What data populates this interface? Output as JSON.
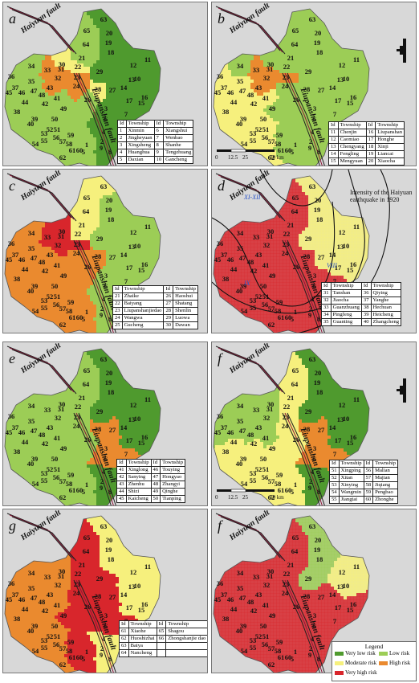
{
  "colors": {
    "very_low": "#4f9a2e",
    "low": "#9ccd56",
    "moderate": "#f6f07d",
    "high": "#ea8a2f",
    "very_high": "#d8262c"
  },
  "fault_labels": {
    "haiyuan": "Haiyuan fault",
    "liupanshan": "Liupanshan fault"
  },
  "panels": [
    {
      "label": "a",
      "north_arrow": false,
      "table": {
        "header": [
          "Id",
          "Township",
          "Id",
          "Township"
        ],
        "rows": [
          [
            "1",
            "Xinmin",
            "6",
            "Xiangshui"
          ],
          [
            "2",
            "Jingheyuan",
            "7",
            "Wenbao"
          ],
          [
            "3",
            "Xingsheng",
            "8",
            "Shanhe"
          ],
          [
            "4",
            "Huanghua",
            "9",
            "Tengzhuang"
          ],
          [
            "5",
            "Daxian",
            "10",
            "Gancheng"
          ]
        ]
      }
    },
    {
      "label": "b",
      "north_arrow": true,
      "scale": {
        "ticks": [
          "0",
          "12.5",
          "25",
          "50 km"
        ]
      },
      "table": {
        "header": [
          "Id",
          "Township",
          "Id",
          "Township"
        ],
        "rows": [
          [
            "11",
            "Chenjin",
            "16",
            "Liupanshan"
          ],
          [
            "12",
            "Caomiao",
            "17",
            "Honghe"
          ],
          [
            "13",
            "Chengyang",
            "18",
            "Xinji"
          ],
          [
            "14",
            "Fengling",
            "19",
            "Liancai"
          ],
          [
            "15",
            "Mengyuan",
            "20",
            "Xiaocha"
          ]
        ]
      }
    },
    {
      "label": "c",
      "north_arrow": false,
      "table": {
        "header": [
          "Id",
          "Township",
          "Id",
          "Township"
        ],
        "rows": [
          [
            "21",
            "Zhaike",
            "26",
            "Haoshui"
          ],
          [
            "22",
            "Baiyang",
            "27",
            "Shatang"
          ],
          [
            "23",
            "Liupanshanjiedao",
            "28",
            "Shenlin"
          ],
          [
            "24",
            "Wangwa",
            "29",
            "Luowa"
          ],
          [
            "25",
            "Gucheng",
            "30",
            "Dawan"
          ]
        ]
      }
    },
    {
      "label": "d",
      "north_arrow": false,
      "annotation": "Intensity of the Haiyuan earthquake in 1920",
      "isoseismals": [
        "XI-XII",
        "IX",
        "VIII",
        "VII"
      ],
      "table": {
        "header": [
          "Id",
          "Township",
          "Id",
          "Township"
        ],
        "rows": [
          [
            "31",
            "Tanshan",
            "36",
            "Qiying"
          ],
          [
            "32",
            "Jiaocha",
            "37",
            "Yanghe"
          ],
          [
            "33",
            "Guanzhuang",
            "38",
            "Hechuan"
          ],
          [
            "34",
            "Pingfeng",
            "39",
            "Heicheng"
          ],
          [
            "35",
            "Guanting",
            "40",
            "Zhangcheng"
          ]
        ]
      }
    },
    {
      "label": "e",
      "north_arrow": false,
      "table": {
        "header": [
          "Id",
          "Township",
          "Id",
          "Township"
        ],
        "rows": [
          [
            "41",
            "Xinglong",
            "46",
            "Touying"
          ],
          [
            "42",
            "Sanying",
            "47",
            "Hongyao"
          ],
          [
            "43",
            "Zhenhu",
            "48",
            "Zhangyi"
          ],
          [
            "44",
            "Shizi",
            "49",
            "Qinghe"
          ],
          [
            "45",
            "Kaicheng",
            "50",
            "Tianping"
          ]
        ]
      }
    },
    {
      "label": "f",
      "north_arrow": true,
      "scale": {
        "ticks": [
          "0",
          "12.5",
          "25",
          "50 km"
        ]
      },
      "table": {
        "header": [
          "Id",
          "Township",
          "Id",
          "Township"
        ],
        "rows": [
          [
            "51",
            "Xingping",
            "56",
            "Malian"
          ],
          [
            "52",
            "Xitan",
            "57",
            "Majian"
          ],
          [
            "53",
            "Xinying",
            "58",
            "Jiqiang"
          ],
          [
            "54",
            "Wangmin",
            "59",
            "Pengbao"
          ],
          [
            "55",
            "Jiangtai",
            "60",
            "Zhonghe"
          ]
        ]
      }
    },
    {
      "label": "g",
      "north_arrow": false,
      "table": {
        "header": [
          "Id",
          "Township",
          "Id",
          "Township"
        ],
        "rows": [
          [
            "61",
            "Xiaohe",
            "65",
            "Shagou"
          ],
          [
            "62",
            "Huoshizhai",
            "66",
            "Zhongshanjie dao"
          ],
          [
            "63",
            "Baiya",
            "",
            " "
          ],
          [
            "64",
            "Nancheng",
            "",
            ""
          ]
        ]
      }
    },
    {
      "label": "f",
      "north_arrow": false
    }
  ],
  "township_ids": [
    "63",
    "20",
    "65",
    "19",
    "64",
    "18",
    "21",
    "22",
    "12",
    "11",
    "34",
    "30",
    "33",
    "31",
    "23",
    "10",
    "36",
    "32",
    "35",
    "13",
    "14",
    "37",
    "43",
    "24",
    "28",
    "27",
    "46",
    "47",
    "45",
    "48",
    "26",
    "17",
    "16",
    "44",
    "42",
    "41",
    "15",
    "38",
    "49",
    "3",
    "39",
    "40",
    "50",
    "6",
    "7",
    "53",
    "52",
    "51",
    "56",
    "55",
    "54",
    "57",
    "59",
    "58",
    "4",
    "2",
    "62",
    "61",
    "60",
    "5",
    "1",
    "9",
    "8",
    "29"
  ],
  "legend": {
    "title": "Legend",
    "items": [
      "Very low risk",
      "Low risk",
      "Moderate risk",
      "High risk",
      "Very high risk"
    ]
  }
}
